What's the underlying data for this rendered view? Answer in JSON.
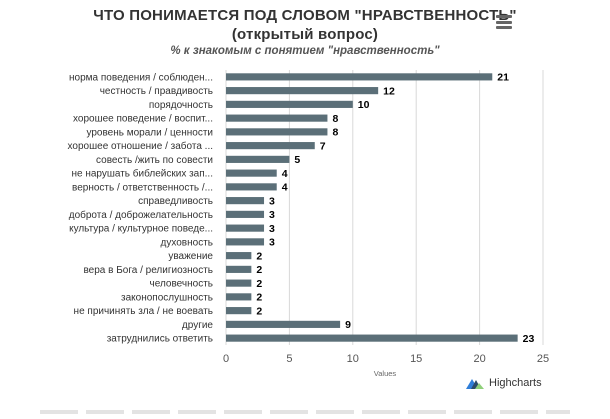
{
  "chart_data": {
    "type": "bar",
    "orientation": "horizontal",
    "title_line1": "ЧТО ПОНИМАЕТСЯ ПОД СЛОВОМ \"НРАВСТВЕННОСТЬ\"",
    "title_line2": "(открытый вопрос)",
    "subtitle": "% к знакомым с понятием \"нравственность\"",
    "xlabel": "Values",
    "ylabel": "",
    "categories": [
      "норма поведения / соблюден...",
      "честность / правдивость",
      "порядочность",
      "хорошее поведение / воспит...",
      "уровень морали / ценности",
      "хорошее отношение / забота ...",
      "совесть /жить по совести",
      "не нарушать библейских зап...",
      "верность / ответственность /...",
      "справедливость",
      "доброта / доброжелательность",
      "культура / культурное поведе...",
      "духовность",
      "уважение",
      "вера в Бога / религиозность",
      "человечность",
      "законопослушность",
      "не причинять зла / не воевать",
      "другие",
      "затруднились ответить"
    ],
    "values": [
      21,
      12,
      10,
      8,
      8,
      7,
      5,
      4,
      4,
      3,
      3,
      3,
      3,
      2,
      2,
      2,
      2,
      2,
      9,
      23
    ],
    "xlim": [
      0,
      25
    ],
    "xticks": [
      0,
      5,
      10,
      15,
      20,
      25
    ],
    "grid": true,
    "legend": "none",
    "bar_color": "#5b6f78"
  },
  "credits": "Highcharts"
}
